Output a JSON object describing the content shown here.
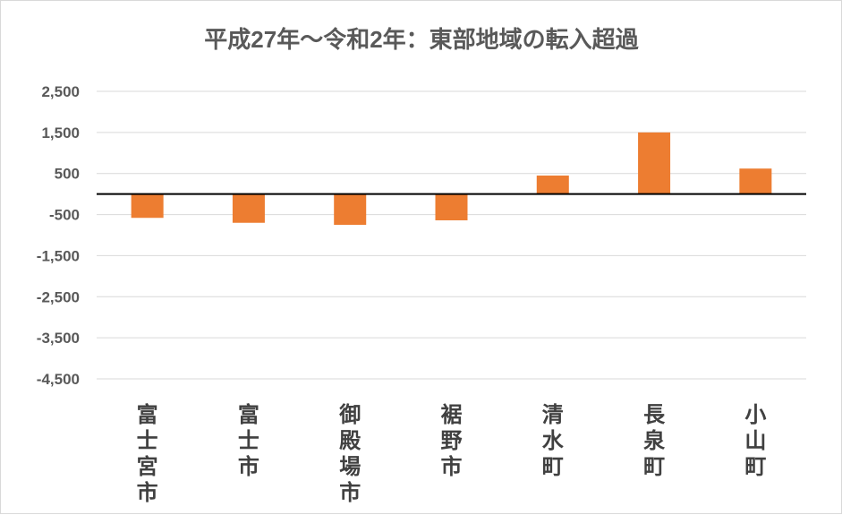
{
  "chart_data": {
    "type": "bar",
    "title": "平成27年～令和2年：東部地域の転入超過",
    "xlabel": "",
    "ylabel": "",
    "categories": [
      "富士宮市",
      "富士市",
      "御殿場市",
      "裾野市",
      "清水町",
      "長泉町",
      "小山町"
    ],
    "values": [
      -580,
      -700,
      -750,
      -640,
      450,
      1500,
      620
    ],
    "ylim": [
      -4500,
      2500
    ],
    "yticks": [
      2500,
      1500,
      500,
      -500,
      -1500,
      -2500,
      -3500,
      -4500
    ],
    "ytick_labels": [
      "2,500",
      "1,500",
      "500",
      "-500",
      "-1,500",
      "-2,500",
      "-3,500",
      "-4,500"
    ],
    "grid": true,
    "legend": "none",
    "colors": {
      "bar": "#ed7d31",
      "grid": "#d9d9d9",
      "zero_line": "#000000"
    }
  }
}
